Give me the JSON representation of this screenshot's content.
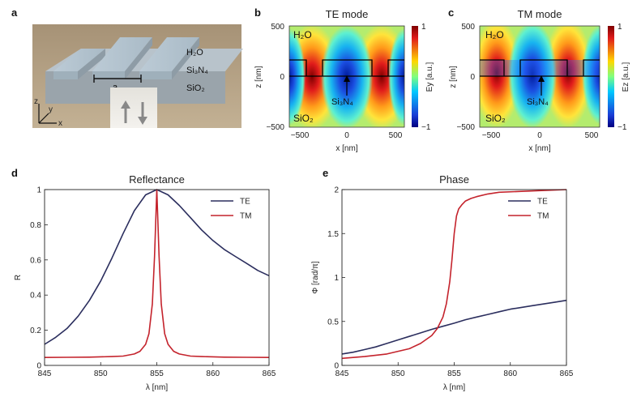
{
  "panels": {
    "a": {
      "label": "a",
      "materials": {
        "water": "H₂O",
        "nitride": "Si₃N₄",
        "oxide": "SiO₂"
      },
      "period_label": "a",
      "axes": {
        "z": "z",
        "y": "y",
        "x": "x"
      }
    },
    "b": {
      "label": "b",
      "title": "TE mode",
      "colorbar_label": "Ey [a.u.]",
      "colorbar_ticks": [
        "1",
        "−1"
      ],
      "y_ticks": [
        "500",
        "0",
        "−500"
      ],
      "x_ticks": [
        "−500",
        "0",
        "500"
      ],
      "xlabel": "x [nm]",
      "ylabel": "z [nm]",
      "region_top": "H₂O",
      "region_bottom": "SiO₂",
      "arrow_label": "Si₃N₄"
    },
    "c": {
      "label": "c",
      "title": "TM mode",
      "colorbar_label": "Ez [a.u.]",
      "colorbar_ticks": [
        "1",
        "−1"
      ],
      "y_ticks": [
        "500",
        "0",
        "−500"
      ],
      "x_ticks": [
        "−500",
        "0",
        "500"
      ],
      "xlabel": "x [nm]",
      "ylabel": "z [nm]",
      "region_top": "H₂O",
      "region_bottom": "SiO₂",
      "arrow_label": "Si₃N₄"
    },
    "d": {
      "label": "d"
    },
    "e": {
      "label": "e"
    }
  },
  "colors": {
    "TE": "#2b2e5e",
    "TM": "#c4232c"
  },
  "chart_data": [
    {
      "id": "reflectance",
      "type": "line",
      "title": "Reflectance",
      "xlabel": "λ [nm]",
      "ylabel": "R",
      "xlim": [
        845,
        865
      ],
      "ylim": [
        0,
        1
      ],
      "x_ticks": [
        845,
        850,
        855,
        860,
        865
      ],
      "y_ticks": [
        0,
        0.2,
        0.4,
        0.6,
        0.8,
        1
      ],
      "y_tick_labels": [
        "0",
        "0.2",
        "0.4",
        "0.6",
        "0.8",
        "1"
      ],
      "legend_position": "top-right",
      "series": [
        {
          "name": "TE",
          "x": [
            845,
            846,
            847,
            848,
            849,
            850,
            851,
            852,
            853,
            854,
            855,
            856,
            857,
            858,
            859,
            860,
            861,
            862,
            863,
            864,
            865
          ],
          "values": [
            0.12,
            0.16,
            0.21,
            0.28,
            0.37,
            0.48,
            0.61,
            0.75,
            0.88,
            0.97,
            1.0,
            0.97,
            0.91,
            0.84,
            0.77,
            0.71,
            0.66,
            0.62,
            0.58,
            0.54,
            0.51
          ]
        },
        {
          "name": "TM",
          "x": [
            845,
            847,
            849,
            851,
            852,
            853,
            853.5,
            854,
            854.3,
            854.6,
            854.8,
            855,
            855.2,
            855.4,
            855.7,
            856,
            856.5,
            857,
            858,
            859,
            861,
            863,
            865
          ],
          "values": [
            0.045,
            0.046,
            0.047,
            0.05,
            0.053,
            0.065,
            0.08,
            0.12,
            0.18,
            0.35,
            0.62,
            1.0,
            0.62,
            0.35,
            0.18,
            0.12,
            0.08,
            0.065,
            0.053,
            0.05,
            0.047,
            0.046,
            0.045
          ]
        }
      ]
    },
    {
      "id": "phase",
      "type": "line",
      "title": "Phase",
      "xlabel": "λ [nm]",
      "ylabel": "Φ [rad/π]",
      "xlim": [
        845,
        865
      ],
      "ylim": [
        0,
        2
      ],
      "x_ticks": [
        845,
        850,
        855,
        860,
        865
      ],
      "y_ticks": [
        0,
        0.5,
        1,
        1.5,
        2
      ],
      "y_tick_labels": [
        "0",
        "0.5",
        "1",
        "1.5",
        "2"
      ],
      "legend_position": "top-right",
      "series": [
        {
          "name": "TE",
          "x": [
            845,
            846,
            847,
            848,
            849,
            850,
            851,
            852,
            853,
            854,
            855,
            856,
            857,
            858,
            859,
            860,
            861,
            862,
            863,
            864,
            865
          ],
          "values": [
            0.13,
            0.15,
            0.18,
            0.21,
            0.25,
            0.29,
            0.33,
            0.37,
            0.41,
            0.445,
            0.48,
            0.52,
            0.55,
            0.58,
            0.61,
            0.64,
            0.66,
            0.68,
            0.7,
            0.72,
            0.74
          ]
        },
        {
          "name": "TM",
          "x": [
            845,
            847,
            849,
            851,
            852,
            853,
            853.5,
            854,
            854.3,
            854.6,
            854.8,
            855,
            855.2,
            855.4,
            855.7,
            856,
            856.5,
            857,
            858,
            859,
            861,
            863,
            865
          ],
          "values": [
            0.08,
            0.1,
            0.13,
            0.19,
            0.25,
            0.34,
            0.42,
            0.55,
            0.7,
            0.95,
            1.2,
            1.5,
            1.7,
            1.78,
            1.83,
            1.87,
            1.9,
            1.92,
            1.95,
            1.97,
            1.98,
            1.99,
            2.0
          ]
        }
      ]
    }
  ]
}
